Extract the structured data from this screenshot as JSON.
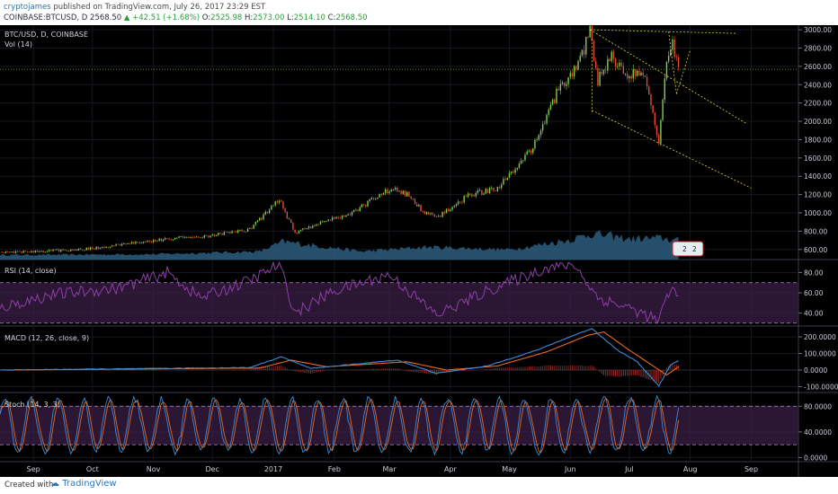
{
  "header": {
    "user": "cryptojames",
    "published_text": "published on TradingView.com, July 26, 2017 23:29 EST",
    "symbol": "COINBASE:BTCUSD, D",
    "last": "2568.50",
    "change": "▲ +42.51 (+1.68%)",
    "open_label": "O:",
    "open": "2525.98",
    "high_label": "H:",
    "high": "2573.00",
    "low_label": "L:",
    "low": "2514.10",
    "close_label": "C:",
    "close": "2568.50"
  },
  "footer": {
    "created_with": "Created with",
    "brand": "TradingView"
  },
  "colors": {
    "background": "#000000",
    "candle_up": "#7fcf4a",
    "candle_down": "#e34a3c",
    "volume": "#2b5d7c",
    "rsi": "#8e3fa8",
    "macd": "#3d8bd9",
    "signal": "#e86a1f",
    "stoch_k": "#3d8bd9",
    "stoch_d": "#e86a1f",
    "band": "#3a1d45",
    "trend": "#d8d43a"
  },
  "chart_data": [
    {
      "type": "candlestick",
      "pane": "price",
      "title": "BTC/USD, D, COINBASE",
      "subtitle": "Vol (14)",
      "yticks": [
        600,
        800,
        1000,
        1200,
        1400,
        1600,
        1800,
        2000,
        2200,
        2400,
        2600,
        2800,
        3000
      ],
      "ylim": [
        490,
        3050
      ],
      "x_start": "2016-08-15",
      "x_end": "2017-09-25",
      "knots": [
        [
          "2016-08-15",
          575
        ],
        [
          "2016-09-01",
          575
        ],
        [
          "2016-10-01",
          610
        ],
        [
          "2016-11-01",
          700
        ],
        [
          "2016-12-01",
          755
        ],
        [
          "2016-12-20",
          820
        ],
        [
          "2017-01-04",
          1150
        ],
        [
          "2017-01-12",
          780
        ],
        [
          "2017-01-25",
          900
        ],
        [
          "2017-02-10",
          1000
        ],
        [
          "2017-03-02",
          1270
        ],
        [
          "2017-03-10",
          1200
        ],
        [
          "2017-03-18",
          1020
        ],
        [
          "2017-03-25",
          940
        ],
        [
          "2017-04-10",
          1190
        ],
        [
          "2017-04-25",
          1270
        ],
        [
          "2017-05-05",
          1500
        ],
        [
          "2017-05-15",
          1780
        ],
        [
          "2017-05-25",
          2300
        ],
        [
          "2017-06-05",
          2600
        ],
        [
          "2017-06-11",
          2980
        ],
        [
          "2017-06-15",
          2450
        ],
        [
          "2017-06-22",
          2700
        ],
        [
          "2017-07-01",
          2500
        ],
        [
          "2017-07-08",
          2560
        ],
        [
          "2017-07-16",
          1800
        ],
        [
          "2017-07-20",
          2700
        ],
        [
          "2017-07-23",
          2850
        ],
        [
          "2017-07-26",
          2568
        ]
      ],
      "volume_profile": [
        [
          "2016-08-15",
          0.25
        ],
        [
          "2016-11-01",
          0.3
        ],
        [
          "2016-12-25",
          0.45
        ],
        [
          "2017-01-06",
          1.0
        ],
        [
          "2017-02-15",
          0.45
        ],
        [
          "2017-03-20",
          0.7
        ],
        [
          "2017-05-01",
          0.55
        ],
        [
          "2017-06-01",
          1.1
        ],
        [
          "2017-06-12",
          1.45
        ],
        [
          "2017-07-01",
          1.15
        ],
        [
          "2017-07-17",
          1.2
        ],
        [
          "2017-07-26",
          1.05
        ]
      ],
      "price_line": 2568.5,
      "badge_values": [
        "2",
        "2"
      ]
    },
    {
      "type": "line",
      "pane": "rsi",
      "title": "RSI (14, close)",
      "yticks": [
        40,
        60,
        80
      ],
      "ylim": [
        28,
        92
      ],
      "band": [
        30,
        70
      ],
      "knots": [
        [
          "2016-08-15",
          45
        ],
        [
          "2016-09-10",
          58
        ],
        [
          "2016-10-15",
          65
        ],
        [
          "2016-11-08",
          80
        ],
        [
          "2016-11-25",
          55
        ],
        [
          "2016-12-20",
          72
        ],
        [
          "2017-01-04",
          88
        ],
        [
          "2017-01-12",
          40
        ],
        [
          "2017-02-01",
          62
        ],
        [
          "2017-03-01",
          78
        ],
        [
          "2017-03-25",
          38
        ],
        [
          "2017-04-20",
          62
        ],
        [
          "2017-05-20",
          85
        ],
        [
          "2017-06-03",
          88
        ],
        [
          "2017-06-15",
          55
        ],
        [
          "2017-07-01",
          45
        ],
        [
          "2017-07-16",
          32
        ],
        [
          "2017-07-22",
          65
        ],
        [
          "2017-07-26",
          55
        ]
      ]
    },
    {
      "type": "line",
      "pane": "macd",
      "title": "MACD (12, 26, close, 9)",
      "yticks": [
        -100,
        0,
        100,
        200
      ],
      "ytick_labels": [
        "-100.0000",
        "0.0000",
        "100.0000",
        "200.0000"
      ],
      "ylim": [
        -130,
        260
      ],
      "macd_knots": [
        [
          "2016-08-15",
          0
        ],
        [
          "2016-12-20",
          15
        ],
        [
          "2017-01-05",
          80
        ],
        [
          "2017-01-20",
          10
        ],
        [
          "2017-03-05",
          60
        ],
        [
          "2017-03-25",
          -20
        ],
        [
          "2017-04-20",
          25
        ],
        [
          "2017-05-15",
          120
        ],
        [
          "2017-06-05",
          220
        ],
        [
          "2017-06-12",
          250
        ],
        [
          "2017-06-25",
          120
        ],
        [
          "2017-07-05",
          50
        ],
        [
          "2017-07-16",
          -95
        ],
        [
          "2017-07-22",
          30
        ],
        [
          "2017-07-26",
          55
        ]
      ],
      "signal_knots": [
        [
          "2016-08-15",
          0
        ],
        [
          "2016-12-25",
          12
        ],
        [
          "2017-01-10",
          60
        ],
        [
          "2017-01-28",
          20
        ],
        [
          "2017-03-10",
          50
        ],
        [
          "2017-03-30",
          0
        ],
        [
          "2017-04-25",
          25
        ],
        [
          "2017-05-20",
          110
        ],
        [
          "2017-06-10",
          210
        ],
        [
          "2017-06-18",
          230
        ],
        [
          "2017-07-01",
          120
        ],
        [
          "2017-07-15",
          10
        ],
        [
          "2017-07-20",
          -30
        ],
        [
          "2017-07-26",
          20
        ]
      ]
    },
    {
      "type": "line",
      "pane": "stoch",
      "title": "Stoch (14, 3, 3)",
      "yticks": [
        0,
        40,
        80
      ],
      "ytick_labels": [
        "0.0000",
        "40.0000",
        "80.0000"
      ],
      "ylim": [
        -5,
        100
      ],
      "band": [
        20,
        80
      ]
    }
  ],
  "x_axis": {
    "labels": [
      {
        "date": "2016-09-01",
        "text": "Sep"
      },
      {
        "date": "2016-10-01",
        "text": "Oct"
      },
      {
        "date": "2016-11-01",
        "text": "Nov"
      },
      {
        "date": "2016-12-01",
        "text": "Dec"
      },
      {
        "date": "2017-01-01",
        "text": "2017"
      },
      {
        "date": "2017-02-01",
        "text": "Feb"
      },
      {
        "date": "2017-03-01",
        "text": "Mar"
      },
      {
        "date": "2017-04-01",
        "text": "Apr"
      },
      {
        "date": "2017-05-01",
        "text": "May"
      },
      {
        "date": "2017-06-01",
        "text": "Jun"
      },
      {
        "date": "2017-07-01",
        "text": "Jul"
      },
      {
        "date": "2017-08-01",
        "text": "Aug"
      },
      {
        "date": "2017-09-01",
        "text": "Sep"
      }
    ]
  }
}
